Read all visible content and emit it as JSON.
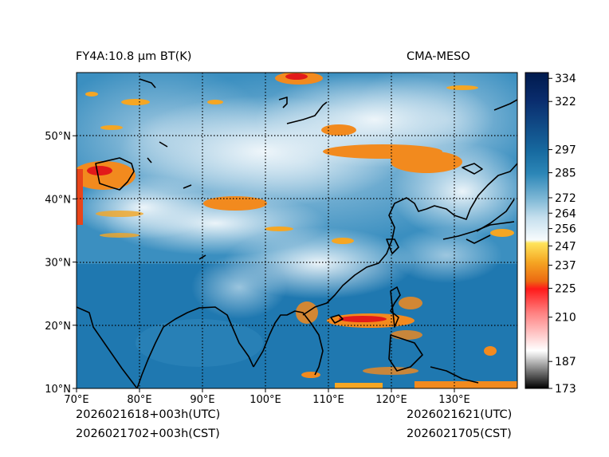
{
  "header": {
    "left_title": "FY4A:10.8 µm BT(K)",
    "right_title": "CMA-MESO"
  },
  "footer": {
    "init_utc": "2026021618+003h(UTC)",
    "init_cst": "2026021702+003h(CST)",
    "valid_utc": "2026021621(UTC)",
    "valid_cst": "2026021705(CST)"
  },
  "map": {
    "x_ticks": [
      "70°E",
      "80°E",
      "90°E",
      "100°E",
      "110°E",
      "120°E",
      "130°E"
    ],
    "x_tick_values": [
      70,
      80,
      90,
      100,
      110,
      120,
      130
    ],
    "y_ticks": [
      "10°N",
      "20°N",
      "30°N",
      "40°N",
      "50°N"
    ],
    "y_tick_values": [
      10,
      20,
      30,
      40,
      50
    ],
    "lon_range": [
      70,
      140
    ],
    "lat_range": [
      10,
      60
    ]
  },
  "colorbar": {
    "labels": [
      "334",
      "322",
      "297",
      "285",
      "272",
      "264",
      "256",
      "247",
      "237",
      "225",
      "210",
      "187",
      "173"
    ],
    "values": [
      334,
      322,
      297,
      285,
      272,
      264,
      256,
      247,
      237,
      225,
      210,
      187,
      173
    ],
    "range": [
      173,
      337
    ]
  },
  "colors": {
    "ocean_blue": "#1f77b4",
    "cold_cloud_white": "#eef5fa",
    "cold_top_orange": "#f28a1e",
    "very_cold_red": "#e21a1a"
  }
}
